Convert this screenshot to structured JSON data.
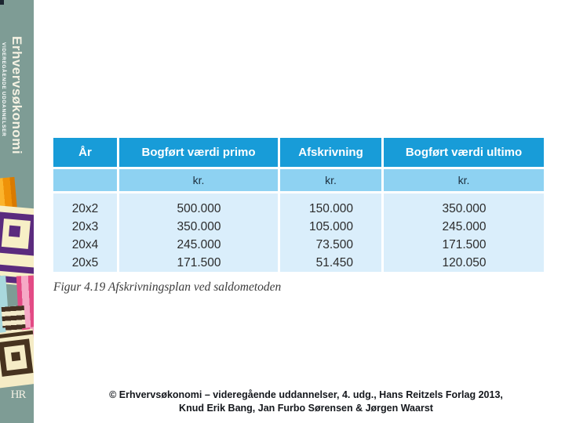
{
  "sidebar": {
    "brand_title": "Erhvervsøkonomi",
    "brand_subtitle": "VIDEREGÅENDE UDDANNELSER",
    "monogram": "HR"
  },
  "table": {
    "headers": [
      "År",
      "Bogført værdi primo",
      "Afskrivning",
      "Bogført værdi ultimo"
    ],
    "unit_row": [
      "",
      "kr.",
      "kr.",
      "kr."
    ],
    "rows": [
      {
        "year": "20x2",
        "primo": "500.000",
        "afskrivning": "150.000",
        "ultimo": "350.000"
      },
      {
        "year": "20x3",
        "primo": "350.000",
        "afskrivning": "105.000",
        "ultimo": "245.000"
      },
      {
        "year": "20x4",
        "primo": "245.000",
        "afskrivning": "73.500",
        "ultimo": "171.500"
      },
      {
        "year": "20x5",
        "primo": "171.500",
        "afskrivning": "51.450",
        "ultimo": "120.050"
      }
    ]
  },
  "caption": "Figur 4.19 Afskrivningsplan ved saldometoden",
  "footer": {
    "line1": "© Erhvervsøkonomi – videregående uddannelser, 4. udg., Hans Reitzels Forlag 2013,",
    "line2": "Knud Erik Bang, Jan Furbo Sørensen & Jørgen Waarst"
  },
  "colors": {
    "sidebar_teal": "#7e9c95",
    "header_blue": "#189cd8",
    "unit_blue": "#8ed2f2",
    "data_blue": "#daeefb",
    "cream": "#f7efc6",
    "purple": "#5b2b7e",
    "orange": "#ef9208",
    "pink": "#e8568d",
    "brown": "#47331f"
  }
}
